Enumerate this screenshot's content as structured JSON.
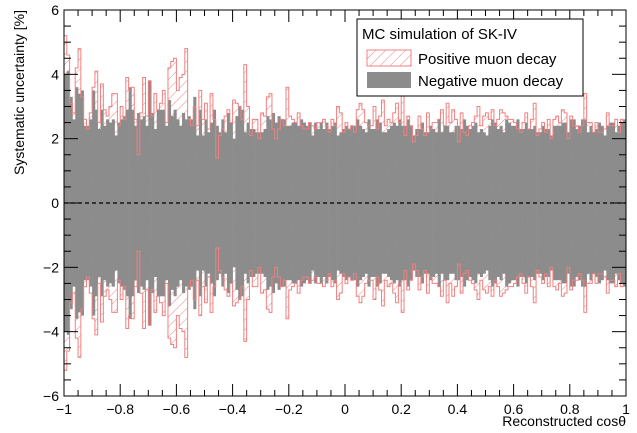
{
  "chart_data": {
    "type": "bar",
    "xlabel": "Reconstructed cosθ",
    "ylabel": "Systematic uncertainty [%]",
    "xlim": [
      -1,
      1
    ],
    "ylim": [
      -6,
      6
    ],
    "x_ticks": [
      -1,
      -0.8,
      -0.6,
      -0.4,
      -0.2,
      0,
      0.2,
      0.4,
      0.6,
      0.8,
      1
    ],
    "y_ticks": [
      -6,
      -4,
      -2,
      0,
      2,
      4,
      6
    ],
    "x_tick_labels": [
      "−1",
      "−0.8",
      "−0.6",
      "−0.4",
      "−0.2",
      "0",
      "0.2",
      "0.4",
      "0.6",
      "0.8",
      "1"
    ],
    "y_tick_labels": [
      "−6",
      "−4",
      "−2",
      "0",
      "2",
      "4",
      "6"
    ],
    "reference_line": 0,
    "bin_width": 0.01,
    "legend": {
      "placement": "top-right",
      "title": "MC simulation of SK-IV",
      "entries": [
        {
          "label": "Positive muon decay",
          "style": "hatched",
          "color": "#f08080"
        },
        {
          "label": "Negative muon decay",
          "style": "filled",
          "color": "#8c8c8c"
        }
      ]
    },
    "series": [
      {
        "name": "Positive muon decay",
        "color": "#f08080",
        "values": [
          5.2,
          4.6,
          3.1,
          2.8,
          4.2,
          4.8,
          3.3,
          2.6,
          2.3,
          2.8,
          3.6,
          4.1,
          2.5,
          3.7,
          2.9,
          2.7,
          3.0,
          3.4,
          3.4,
          2.4,
          3.0,
          2.6,
          3.9,
          3.5,
          3.6,
          2.6,
          1.5,
          2.8,
          3.9,
          2.7,
          3.8,
          2.7,
          3.4,
          2.9,
          3.1,
          3.5,
          2.5,
          4.2,
          4.4,
          4.5,
          3.5,
          3.9,
          4.0,
          4.8,
          2.6,
          2.4,
          3.0,
          2.4,
          3.5,
          2.6,
          3.1,
          2.3,
          3.4,
          2.6,
          1.4,
          2.1,
          2.3,
          2.7,
          2.9,
          2.5,
          3.2,
          3.1,
          3.0,
          2.6,
          4.3,
          3.0,
          2.1,
          2.6,
          2.6,
          2.0,
          2.8,
          2.7,
          3.3,
          3.4,
          2.3,
          2.0,
          2.3,
          2.6,
          2.4,
          3.6,
          2.7,
          2.6,
          2.5,
          2.8,
          2.4,
          2.3,
          2.3,
          2.5,
          2.4,
          2.3,
          2.5,
          2.5,
          2.6,
          2.4,
          2.2,
          2.6,
          2.4,
          3.0,
          2.8,
          2.2,
          2.5,
          2.3,
          2.4,
          2.2,
          2.9,
          3.1,
          2.9,
          2.5,
          2.4,
          2.4,
          3.0,
          2.3,
          2.7,
          3.2,
          2.4,
          2.6,
          2.5,
          2.8,
          3.1,
          2.5,
          3.4,
          2.1,
          2.7,
          2.4,
          1.9,
          2.1,
          2.7,
          2.3,
          2.1,
          2.8,
          2.3,
          2.5,
          2.5,
          2.6,
          2.9,
          2.4,
          3.1,
          2.5,
          2.9,
          2.6,
          1.9,
          2.8,
          2.2,
          2.1,
          2.4,
          2.5,
          2.7,
          3.0,
          2.4,
          2.7,
          2.8,
          2.6,
          2.9,
          2.4,
          2.6,
          2.9,
          2.8,
          2.7,
          2.6,
          2.6,
          2.5,
          2.3,
          2.2,
          2.5,
          2.8,
          2.3,
          2.6,
          3.1,
          2.1,
          2.3,
          2.5,
          2.2,
          2.6,
          2.0,
          2.6,
          2.7,
          2.5,
          2.9,
          2.8,
          2.0,
          2.7,
          2.4,
          2.4,
          2.2,
          2.4,
          3.4,
          2.5,
          2.5,
          2.2,
          2.5,
          2.2,
          2.2,
          2.3,
          2.8,
          2.4,
          2.4,
          2.6,
          2.2,
          2.6,
          2.5
        ]
      },
      {
        "name": "Negative muon decay",
        "color": "#8c8c8c",
        "values": [
          4.0,
          4.1,
          3.3,
          2.6,
          3.6,
          3.4,
          3.5,
          2.4,
          2.4,
          2.6,
          3.5,
          2.9,
          2.3,
          2.9,
          2.4,
          2.6,
          2.5,
          2.6,
          2.1,
          2.5,
          2.6,
          2.7,
          2.9,
          3.6,
          2.9,
          2.4,
          2.8,
          2.6,
          2.7,
          2.4,
          3.8,
          2.8,
          2.3,
          2.9,
          2.9,
          2.9,
          2.4,
          3.2,
          2.7,
          2.9,
          2.6,
          2.4,
          2.8,
          2.6,
          2.7,
          2.6,
          3.3,
          2.1,
          2.9,
          2.1,
          2.6,
          2.2,
          2.5,
          2.9,
          2.4,
          2.2,
          2.6,
          2.2,
          2.8,
          2.5,
          2.0,
          2.7,
          3.0,
          2.9,
          2.2,
          2.5,
          2.3,
          2.3,
          2.2,
          2.2,
          2.2,
          2.3,
          2.7,
          2.6,
          2.8,
          2.5,
          2.7,
          2.6,
          2.6,
          2.4,
          2.4,
          2.5,
          2.5,
          2.4,
          2.6,
          2.5,
          2.4,
          2.5,
          2.1,
          2.5,
          2.3,
          2.5,
          2.3,
          2.5,
          2.3,
          2.4,
          2.5,
          2.1,
          2.2,
          2.3,
          2.4,
          2.3,
          2.4,
          2.4,
          2.6,
          2.4,
          2.3,
          2.2,
          2.6,
          2.3,
          2.3,
          2.6,
          2.5,
          2.2,
          2.2,
          2.3,
          2.4,
          2.5,
          2.4,
          2.6,
          2.4,
          2.4,
          2.6,
          2.4,
          2.1,
          2.3,
          2.3,
          2.5,
          2.2,
          2.2,
          2.4,
          2.3,
          2.2,
          2.6,
          2.2,
          2.4,
          2.4,
          2.2,
          2.2,
          2.4,
          2.4,
          2.3,
          2.6,
          2.4,
          2.3,
          2.4,
          2.5,
          2.2,
          2.3,
          2.2,
          2.1,
          2.4,
          2.6,
          2.5,
          2.3,
          2.4,
          2.2,
          2.6,
          2.5,
          2.4,
          2.4,
          2.6,
          2.3,
          2.3,
          2.5,
          2.3,
          2.3,
          2.4,
          2.2,
          2.2,
          2.4,
          2.3,
          2.3,
          2.1,
          2.4,
          2.4,
          2.4,
          2.5,
          2.5,
          2.2,
          2.6,
          2.6,
          2.3,
          2.4,
          2.6,
          2.6,
          2.2,
          2.4,
          2.2,
          2.3,
          2.5,
          2.4,
          2.1,
          2.4,
          2.5,
          2.5,
          2.2,
          2.4,
          2.5,
          2.6
        ]
      }
    ]
  }
}
